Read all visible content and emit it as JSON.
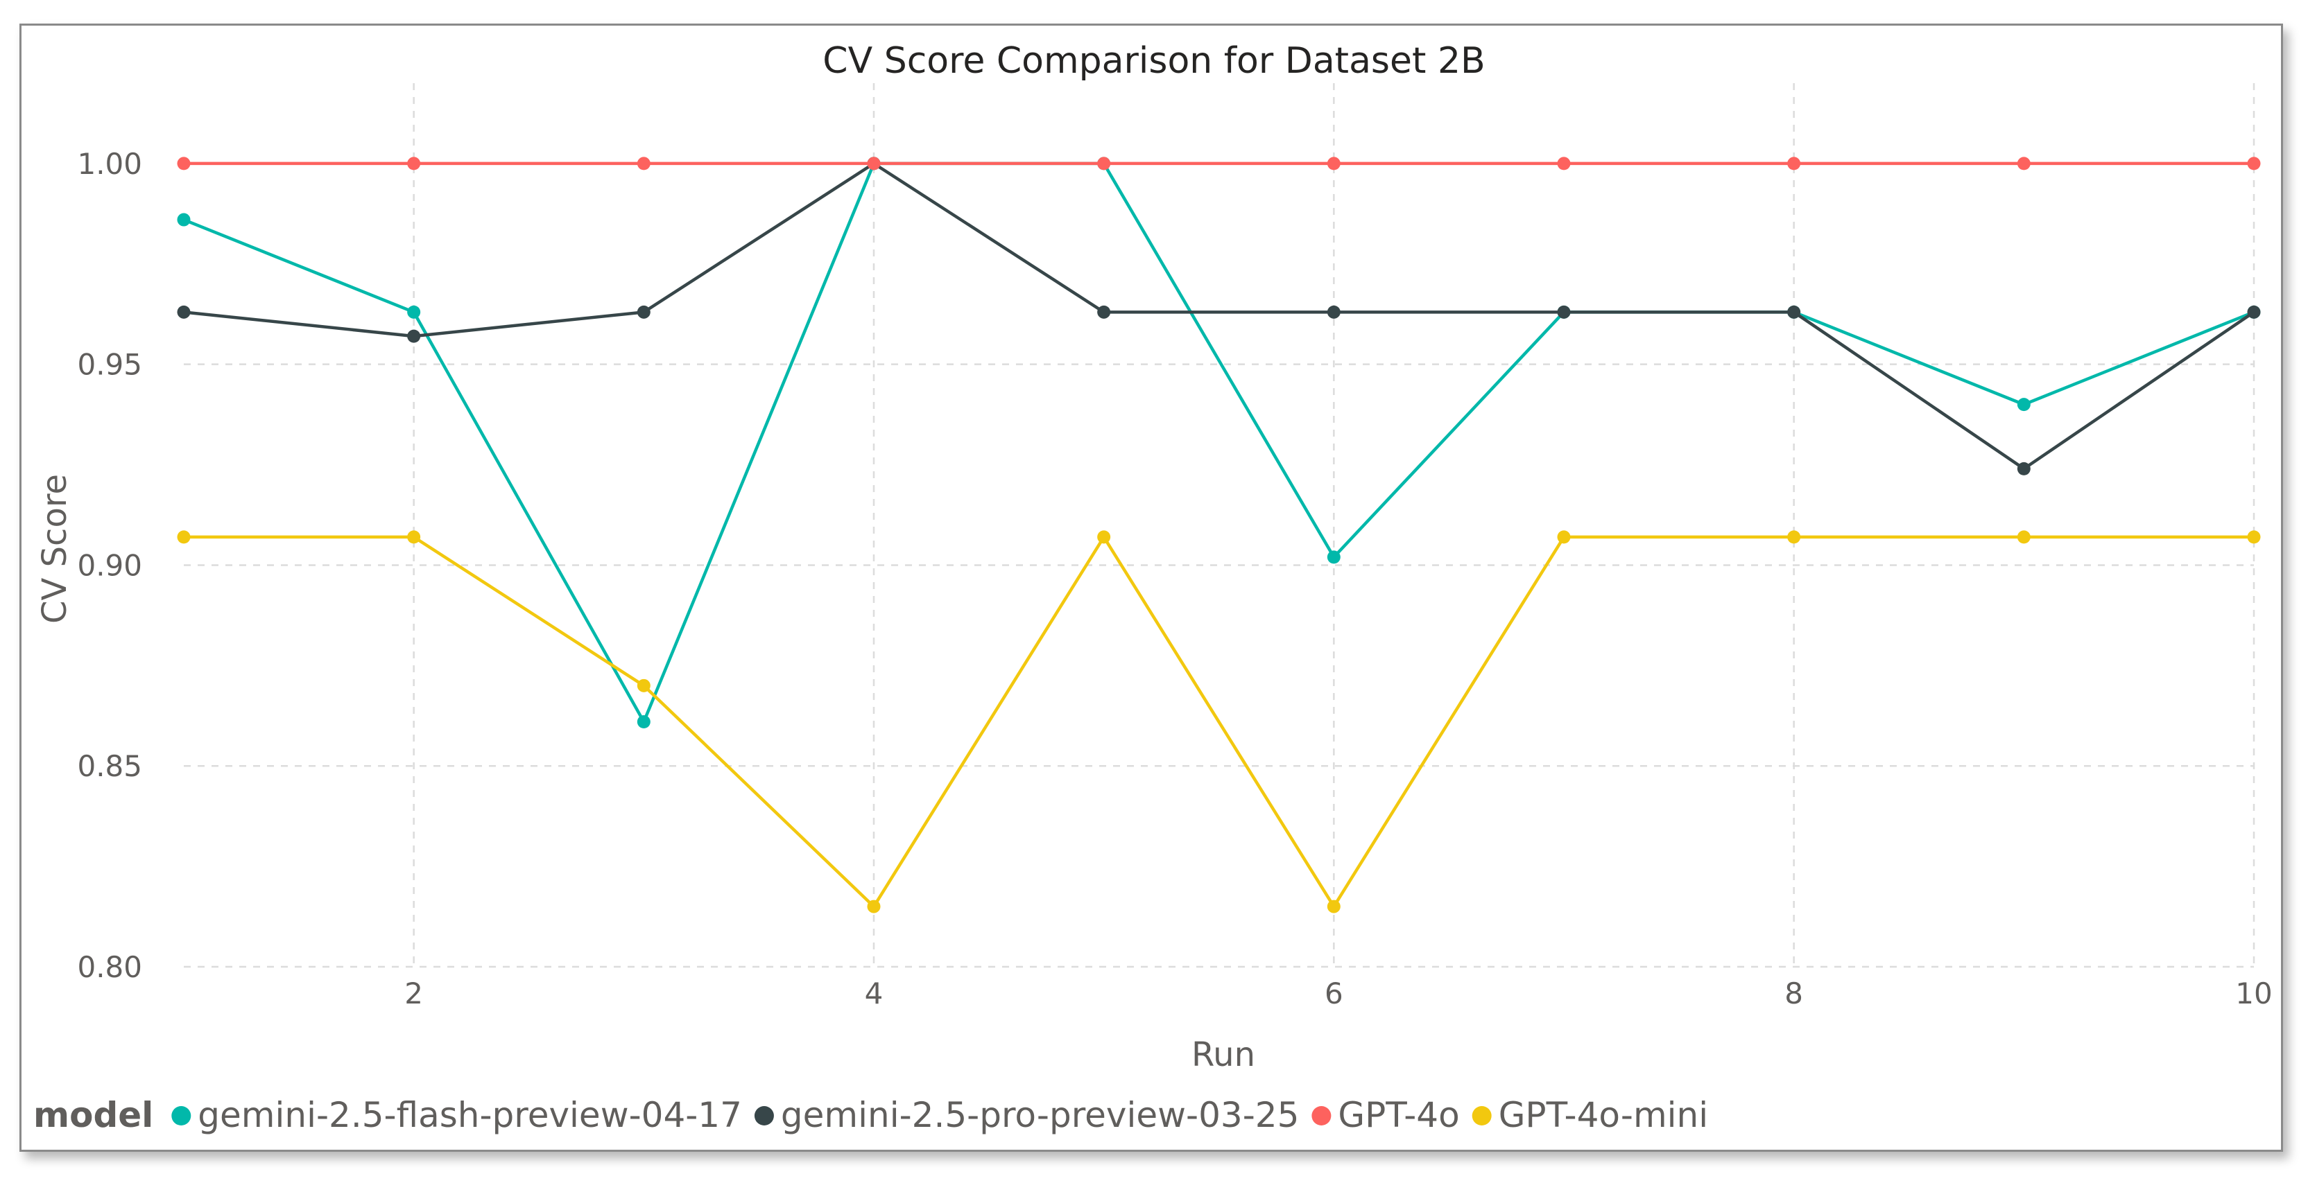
{
  "chart_data": {
    "type": "line",
    "title": "CV Score Comparison for Dataset 2B",
    "xlabel": "Run",
    "ylabel": "CV Score",
    "xlim": [
      1,
      10
    ],
    "ylim": [
      0.8,
      1.02
    ],
    "x": [
      1,
      2,
      3,
      4,
      5,
      6,
      7,
      8,
      9,
      10
    ],
    "xticks": [
      2,
      4,
      6,
      8,
      10
    ],
    "yticks": [
      0.8,
      0.85,
      0.9,
      0.95,
      1.0
    ],
    "ytick_labels": [
      "0.80",
      "0.85",
      "0.90",
      "0.95",
      "1.00"
    ],
    "grid": true,
    "legend_title": "model",
    "legend_position": "bottom-left",
    "series": [
      {
        "name": "gemini-2.5-flash-preview-04-17",
        "color": "#01b8aa",
        "values": [
          0.986,
          0.963,
          0.861,
          1.0,
          1.0,
          0.902,
          0.963,
          0.963,
          0.94,
          0.963
        ]
      },
      {
        "name": "gemini-2.5-pro-preview-03-25",
        "color": "#374649",
        "values": [
          0.963,
          0.957,
          0.963,
          1.0,
          0.963,
          0.963,
          0.963,
          0.963,
          0.924,
          0.963
        ]
      },
      {
        "name": "GPT-4o",
        "color": "#fd625e",
        "values": [
          1.0,
          1.0,
          1.0,
          1.0,
          1.0,
          1.0,
          1.0,
          1.0,
          1.0,
          1.0
        ]
      },
      {
        "name": "GPT-4o-mini",
        "color": "#f2c80f",
        "values": [
          0.907,
          0.907,
          0.87,
          0.815,
          0.907,
          0.815,
          0.907,
          0.907,
          0.907,
          0.907
        ]
      }
    ]
  }
}
